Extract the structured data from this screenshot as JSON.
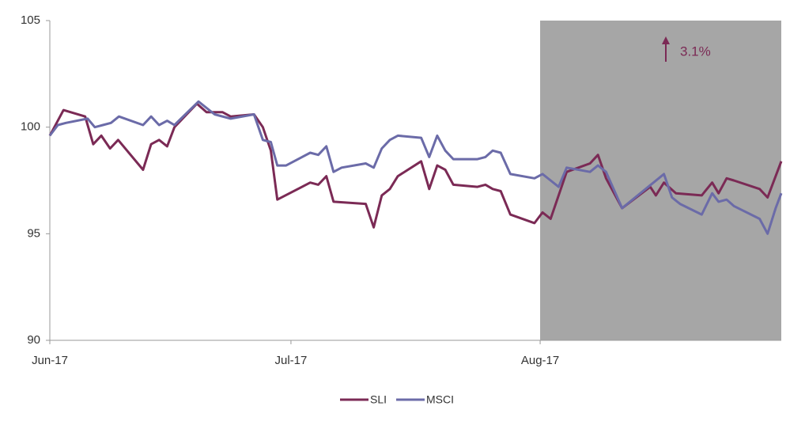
{
  "chart_data": {
    "type": "line",
    "xlim": [
      0,
      91
    ],
    "xticks": [
      {
        "value": 0,
        "label": "Jun-17"
      },
      {
        "value": 30,
        "label": "Jul-17"
      },
      {
        "value": 61,
        "label": "Aug-17"
      }
    ],
    "ylim": [
      90,
      105
    ],
    "yticks": [
      90,
      95,
      100,
      105
    ],
    "highlight_range": [
      61,
      91
    ],
    "highlight_color": "#a6a6a6",
    "annotation": "3.1%",
    "annotation_color": "#7b2a55",
    "legend": "bottom",
    "series": [
      {
        "name": "SLI",
        "color": "#7b2a55",
        "x": [
          0,
          1.7,
          4.4,
          5.4,
          6.4,
          7.5,
          8.5,
          11.6,
          12.6,
          13.6,
          14.6,
          15.5,
          18.3,
          19.5,
          21.5,
          22.5,
          25.4,
          26.5,
          27.5,
          28.3,
          32.4,
          33.4,
          34.4,
          35.3,
          39.3,
          40.3,
          41.3,
          42.3,
          43.3,
          46.2,
          47.2,
          48.2,
          49.2,
          50.2,
          53.2,
          54.2,
          55.1,
          56.1,
          57.3,
          60.3,
          61.3,
          62.3,
          64.3,
          67.2,
          68.2,
          69.2,
          71.2,
          74.7,
          75.4,
          76.4,
          77.9,
          81.1,
          82.4,
          83.2,
          84.2,
          85.1,
          88.3,
          89.3,
          91
        ],
        "values": [
          99.6,
          100.8,
          100.5,
          99.2,
          99.6,
          99.0,
          99.4,
          98.0,
          99.2,
          99.4,
          99.1,
          100.0,
          101.1,
          100.7,
          100.7,
          100.5,
          100.6,
          100.0,
          98.9,
          96.6,
          97.4,
          97.3,
          97.7,
          96.5,
          96.4,
          95.3,
          96.8,
          97.1,
          97.7,
          98.4,
          97.1,
          98.2,
          98.0,
          97.3,
          97.2,
          97.3,
          97.1,
          97.0,
          95.9,
          95.5,
          96.0,
          95.7,
          97.9,
          98.3,
          98.7,
          97.6,
          96.2,
          97.2,
          96.8,
          97.4,
          96.9,
          96.8,
          97.4,
          96.9,
          97.6,
          97.5,
          97.1,
          96.7,
          98.4
        ]
      },
      {
        "name": "MSCI",
        "color": "#6b6ba8",
        "x": [
          0,
          1,
          2,
          4.7,
          5.6,
          6.6,
          7.6,
          8.6,
          11.6,
          12.6,
          13.6,
          14.6,
          15.5,
          18.5,
          20.5,
          22.5,
          25.4,
          26.5,
          27.5,
          28.3,
          29.4,
          32.4,
          33.4,
          34.4,
          35.3,
          36.3,
          39.3,
          40.3,
          41.3,
          42.3,
          43.3,
          46.2,
          47.2,
          48.2,
          49.2,
          50.2,
          53.2,
          54.2,
          55.1,
          56.1,
          57.3,
          60.3,
          61.3,
          62.3,
          63.3,
          64.3,
          67.2,
          68.2,
          69.2,
          71.2,
          76.4,
          77.4,
          78.4,
          81.1,
          82.4,
          83.2,
          84.2,
          85.1,
          88.3,
          89.3,
          90.3,
          91
        ],
        "values": [
          99.6,
          100.1,
          100.2,
          100.4,
          100.0,
          100.1,
          100.2,
          100.5,
          100.1,
          100.5,
          100.1,
          100.3,
          100.1,
          101.2,
          100.6,
          100.4,
          100.6,
          99.4,
          99.3,
          98.2,
          98.2,
          98.8,
          98.7,
          99.1,
          97.9,
          98.1,
          98.3,
          98.1,
          99.0,
          99.4,
          99.6,
          99.5,
          98.6,
          99.6,
          98.9,
          98.5,
          98.5,
          98.6,
          98.9,
          98.8,
          97.8,
          97.6,
          97.8,
          97.5,
          97.2,
          98.1,
          97.9,
          98.2,
          97.9,
          96.2,
          97.8,
          96.7,
          96.4,
          95.9,
          96.9,
          96.5,
          96.6,
          96.3,
          95.7,
          95.0,
          96.2,
          96.9
        ]
      }
    ]
  }
}
